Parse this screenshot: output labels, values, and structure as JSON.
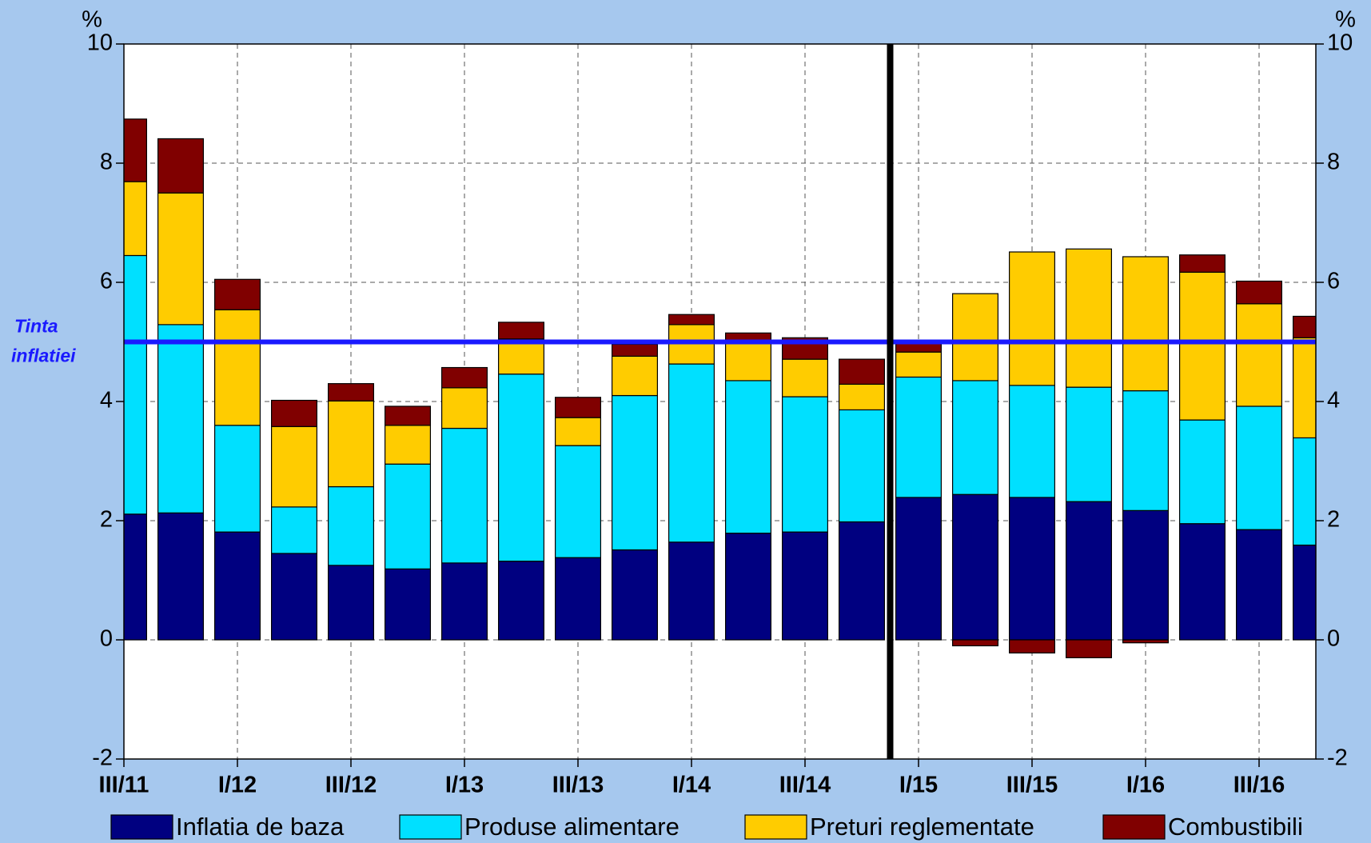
{
  "chart_data": {
    "type": "stacked_bar",
    "y_unit": "%",
    "y2_unit": "%",
    "categories": [
      "III/11",
      null,
      "I/12",
      null,
      "III/12",
      null,
      "I/13",
      null,
      "III/13",
      null,
      "I/14",
      null,
      "III/14",
      null,
      "I/15",
      null,
      "III/15",
      null,
      "I/16",
      null,
      "III/16",
      null
    ],
    "series": [
      {
        "name": "Inflatia de baza",
        "color": "#000080",
        "values": [
          2.11,
          2.13,
          1.81,
          1.45,
          1.25,
          1.19,
          1.29,
          1.32,
          1.38,
          1.51,
          1.64,
          1.79,
          1.81,
          1.98,
          2.39,
          2.44,
          2.39,
          2.32,
          2.17,
          1.95,
          1.85,
          1.59
        ]
      },
      {
        "name": "Produse alimentare",
        "color": "#00e0ff",
        "values": [
          4.34,
          3.16,
          1.79,
          0.78,
          1.32,
          1.76,
          2.26,
          3.14,
          1.88,
          2.59,
          2.99,
          2.56,
          2.27,
          1.88,
          2.02,
          1.91,
          1.88,
          1.92,
          2.01,
          1.74,
          2.07,
          1.8
        ]
      },
      {
        "name": "Preturi reglementate",
        "color": "#ffcc00",
        "values": [
          1.24,
          2.21,
          1.94,
          1.35,
          1.44,
          0.65,
          0.68,
          0.59,
          0.47,
          0.66,
          0.66,
          0.67,
          0.63,
          0.43,
          0.42,
          1.46,
          2.24,
          2.32,
          2.25,
          2.48,
          1.72,
          1.68
        ]
      },
      {
        "name": "Combustibili",
        "color": "#800000",
        "values": [
          1.05,
          0.91,
          0.51,
          0.44,
          0.29,
          0.32,
          0.34,
          0.28,
          0.34,
          0.2,
          0.17,
          0.13,
          0.36,
          0.42,
          0.19,
          -0.1,
          -0.22,
          -0.3,
          -0.05,
          0.29,
          0.38,
          0.36
        ]
      }
    ],
    "ylim": [
      -2,
      10
    ],
    "yticks": [
      -2,
      0,
      2,
      4,
      6,
      8,
      10
    ],
    "y2lim": [
      -2,
      10
    ],
    "y2ticks": [
      -2,
      0,
      2,
      4,
      6,
      8,
      10
    ],
    "grid": true,
    "target": 5,
    "target_color": "#1a1aff",
    "target_label": [
      "Tinta",
      "inflatiei"
    ],
    "legend": "bottom"
  }
}
